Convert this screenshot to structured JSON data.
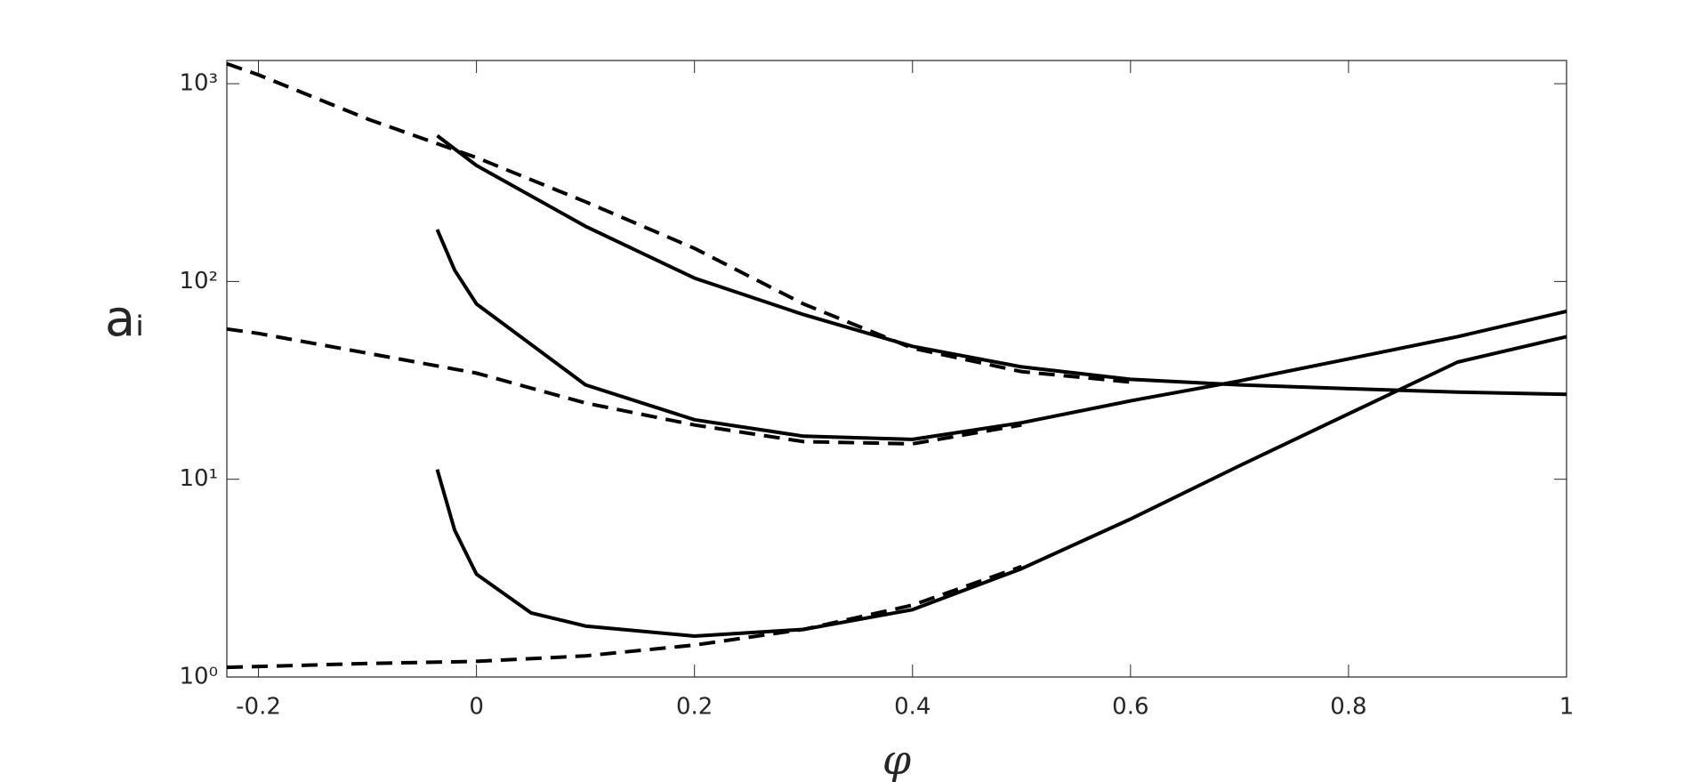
{
  "chart_data": {
    "type": "line",
    "xlabel": "φ",
    "ylabel": "aᵢ",
    "xlim": [
      -0.229,
      1
    ],
    "xticks": [
      -0.2,
      0,
      0.2,
      0.4,
      0.6,
      0.8,
      1
    ],
    "ylim": [
      1,
      1310
    ],
    "log_y": true,
    "yticks": [
      {
        "value": 1,
        "label": "10⁰"
      },
      {
        "value": 10,
        "label": "10¹"
      },
      {
        "value": 100,
        "label": "10²"
      },
      {
        "value": 1000,
        "label": "10³"
      }
    ],
    "series": [
      {
        "color": "#000000",
        "linestyle": "solid",
        "x": [
          -0.036,
          -0.02,
          0,
          0.1,
          0.2,
          0.3,
          0.4,
          0.5,
          0.6,
          0.7,
          0.8,
          0.9,
          1
        ],
        "values": [
          546,
          468,
          386,
          190,
          104,
          68,
          47,
          37,
          32,
          30,
          28.7,
          27.6,
          26.9
        ]
      },
      {
        "color": "#000000",
        "linestyle": "dashed",
        "x": [
          -0.229,
          -0.2,
          -0.1,
          0,
          0.1,
          0.2,
          0.3,
          0.4,
          0.5,
          0.6
        ],
        "values": [
          1262,
          1109,
          663,
          423,
          253,
          147,
          77,
          46,
          35,
          31
        ]
      },
      {
        "color": "#000000",
        "linestyle": "solid",
        "x": [
          -0.036,
          -0.02,
          0,
          0.1,
          0.2,
          0.3,
          0.4,
          0.5,
          0.6,
          0.7,
          0.8,
          0.9,
          1
        ],
        "values": [
          183,
          114,
          77,
          30,
          20,
          16.5,
          15.9,
          19.3,
          24.9,
          31.4,
          40.6,
          52.6,
          70.7
        ]
      },
      {
        "color": "#000000",
        "linestyle": "dashed",
        "x": [
          -0.229,
          -0.2,
          -0.1,
          0,
          0.1,
          0.2,
          0.3,
          0.4,
          0.5
        ],
        "values": [
          57.5,
          54.6,
          43.4,
          34.4,
          24.3,
          18.8,
          15.5,
          15.1,
          18.8
        ]
      },
      {
        "color": "#000000",
        "linestyle": "solid",
        "x": [
          -0.036,
          -0.02,
          0,
          0.05,
          0.1,
          0.2,
          0.3,
          0.4,
          0.5,
          0.6,
          0.7,
          0.8,
          0.9,
          1
        ],
        "values": [
          11.2,
          5.53,
          3.31,
          2.11,
          1.81,
          1.61,
          1.74,
          2.19,
          3.53,
          6.29,
          11.7,
          21.4,
          39.1,
          52.6
        ]
      },
      {
        "color": "#000000",
        "linestyle": "dashed",
        "x": [
          -0.229,
          -0.1,
          0,
          0.1,
          0.2,
          0.3,
          0.4,
          0.5
        ],
        "values": [
          1.12,
          1.17,
          1.2,
          1.28,
          1.45,
          1.74,
          2.31,
          3.62
        ]
      }
    ]
  }
}
